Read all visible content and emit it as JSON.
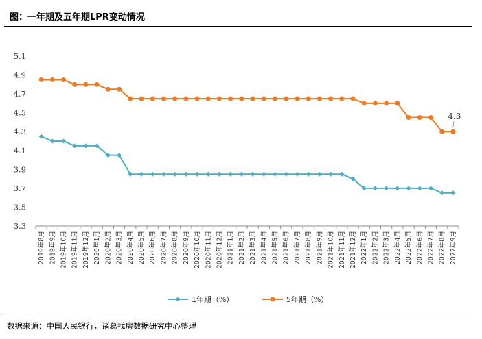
{
  "header": {
    "title": "图：一年期及五年期LPR变动情况"
  },
  "footer": {
    "source": "数据来源：中国人民银行，诸葛找房数据研究中心整理"
  },
  "chart_data": {
    "type": "line",
    "categories": [
      "2019年8月",
      "2019年9月",
      "2019年10月",
      "2019年11月",
      "2019年12月",
      "2020年1月",
      "2020年2月",
      "2020年3月",
      "2020年4月",
      "2020年5月",
      "2020年6月",
      "2020年7月",
      "2020年8月",
      "2020年9月",
      "2020年10月",
      "2020年11月",
      "2020年12月",
      "2021年1月",
      "2021年2月",
      "2021年3月",
      "2021年4月",
      "2021年5月",
      "2021年6月",
      "2021年7月",
      "2021年8月",
      "2021年9月",
      "2021年10月",
      "2021年11月",
      "2021年12月",
      "2022年1月",
      "2022年2月",
      "2022年3月",
      "2022年4月",
      "2022年5月",
      "2022年6月",
      "2022年7月",
      "2022年8月",
      "2022年9月"
    ],
    "series": [
      {
        "name": "1年期（%）",
        "color": "#4aaec4",
        "values": [
          4.25,
          4.2,
          4.2,
          4.15,
          4.15,
          4.15,
          4.05,
          4.05,
          3.85,
          3.85,
          3.85,
          3.85,
          3.85,
          3.85,
          3.85,
          3.85,
          3.85,
          3.85,
          3.85,
          3.85,
          3.85,
          3.85,
          3.85,
          3.85,
          3.85,
          3.85,
          3.85,
          3.85,
          3.8,
          3.7,
          3.7,
          3.7,
          3.7,
          3.7,
          3.7,
          3.7,
          3.65,
          3.65
        ]
      },
      {
        "name": "5年期（%）",
        "color": "#f07a22",
        "values": [
          4.85,
          4.85,
          4.85,
          4.8,
          4.8,
          4.8,
          4.75,
          4.75,
          4.65,
          4.65,
          4.65,
          4.65,
          4.65,
          4.65,
          4.65,
          4.65,
          4.65,
          4.65,
          4.65,
          4.65,
          4.65,
          4.65,
          4.65,
          4.65,
          4.65,
          4.65,
          4.65,
          4.65,
          4.65,
          4.6,
          4.6,
          4.6,
          4.6,
          4.45,
          4.45,
          4.45,
          4.3,
          4.3
        ]
      }
    ],
    "ylim": [
      3.3,
      5.1
    ],
    "yticks": [
      "3.3",
      "3.5",
      "3.7",
      "3.9",
      "4.1",
      "4.3",
      "4.5",
      "4.7",
      "4.9",
      "5.1"
    ],
    "annotations": [
      {
        "text": "4.3"
      }
    ],
    "grid": false,
    "legend_position": "bottom"
  }
}
